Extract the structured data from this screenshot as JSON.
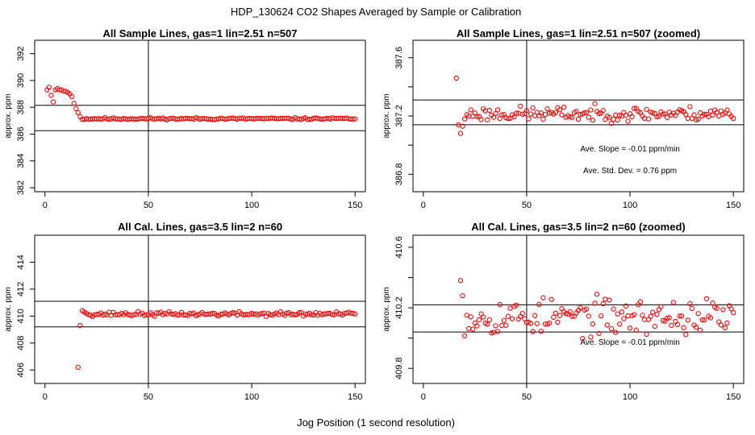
{
  "figure": {
    "suptitle": "HDP_130624  CO2 Shapes Averaged by Sample or Calibration",
    "xlabel": "Jog Position (1 second resolution)"
  },
  "chart_data": [
    {
      "type": "scatter",
      "title": "All Sample Lines, gas=1 lin=2.51 n=507",
      "ylabel": "approx. ppm",
      "xlim": [
        -5,
        155
      ],
      "ylim": [
        381.7,
        393.0
      ],
      "xticks": [
        0,
        50,
        100,
        150
      ],
      "yticks": [
        382,
        384,
        386,
        388,
        390,
        392
      ],
      "vline": 50,
      "hlines": [
        386.25,
        388.15
      ],
      "marker_color": "#ff0000",
      "annotations": [],
      "x_start": 1,
      "y_head": [
        389.3,
        389.5,
        388.9,
        388.4,
        389.3,
        389.4,
        389.3,
        389.3,
        389.2,
        389.2,
        389.1,
        389.0,
        388.8,
        388.3,
        387.9,
        387.6,
        387.3,
        387.1
      ],
      "y_steady": 387.15,
      "y_noise": 0.035,
      "x_end": 150,
      "seed": 11
    },
    {
      "type": "scatter",
      "title": "All Sample Lines, gas=1 lin=2.51 n=507 (zoomed)",
      "ylabel": "approx. ppm",
      "xlim": [
        -5,
        155
      ],
      "ylim": [
        386.68,
        387.72
      ],
      "xticks": [
        0,
        50,
        100,
        150
      ],
      "yticks": [
        386.8,
        387.0,
        387.2,
        387.4,
        387.6
      ],
      "ytick_labels": [
        "386.8",
        "",
        "387.2",
        "",
        "387.6"
      ],
      "vline": 50,
      "hlines": [
        387.14,
        387.31
      ],
      "marker_color": "#ff0000",
      "annotations": [
        "Ave. Slope =  -0.01  ppm/min",
        "Ave. Std. Dev. =  0.76  ppm"
      ],
      "x_start": 16,
      "y_head": [
        387.46,
        387.14,
        387.08,
        387.13,
        387.18,
        387.21
      ],
      "y_steady": 387.215,
      "y_noise": 0.025,
      "x_end": 150,
      "seed": 23
    },
    {
      "type": "scatter",
      "title": "All Cal. Lines, gas=3.5 lin=2 n=60",
      "ylabel": "approx. ppm",
      "xlim": [
        -5,
        155
      ],
      "ylim": [
        405.0,
        416.0
      ],
      "xticks": [
        0,
        50,
        100,
        150
      ],
      "yticks": [
        406,
        408,
        410,
        412,
        414
      ],
      "vline": 50,
      "hlines": [
        409.2,
        411.1
      ],
      "marker_color": "#ff0000",
      "annotations": [],
      "x_start": 16,
      "y_head": [
        406.2,
        409.3,
        410.4,
        410.3,
        410.2,
        410.1
      ],
      "y_steady": 410.15,
      "y_noise": 0.08,
      "x_end": 150,
      "seed": 37
    },
    {
      "type": "scatter",
      "title": "All Cal. Lines, gas=3.5 lin=2 n=60 (zoomed)",
      "ylabel": "approx. ppm",
      "xlim": [
        -5,
        155
      ],
      "ylim": [
        409.7,
        410.68
      ],
      "xticks": [
        0,
        50,
        100,
        150
      ],
      "yticks": [
        409.8,
        410.0,
        410.2,
        410.4,
        410.6
      ],
      "ytick_labels": [
        "409.8",
        "",
        "410.2",
        "",
        "410.6"
      ],
      "vline": 50,
      "hlines": [
        410.04,
        410.22
      ],
      "marker_color": "#ff0000",
      "annotations": [
        "Ave. Slope =  -0.01  ppm/min"
      ],
      "x_start": 18,
      "y_head": [
        410.38,
        410.28
      ],
      "y_steady": 410.14,
      "y_noise": 0.06,
      "x_end": 150,
      "seed": 53
    }
  ]
}
